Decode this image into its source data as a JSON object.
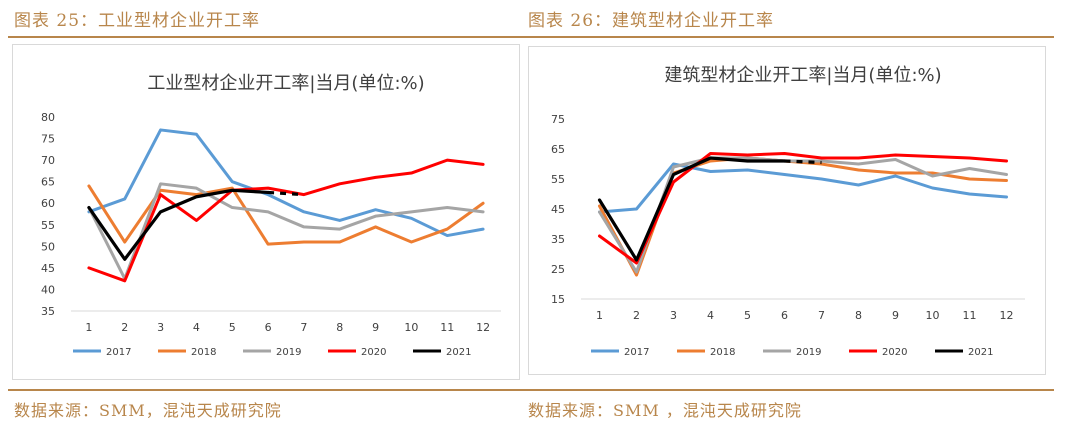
{
  "captions": {
    "left": "图表 25：工业型材企业开工率",
    "right": "图表 26：建筑型材企业开工率"
  },
  "sources": {
    "left": "数据来源：SMM，混沌天成研究院",
    "right": "数据来源：SMM ，混沌天成研究院"
  },
  "colors": {
    "2017": "#5b9bd5",
    "2018": "#ed7d31",
    "2019": "#a5a5a5",
    "2020": "#ff0000",
    "2021": "#000000",
    "accent": "#b8864b"
  },
  "chart_data": [
    {
      "type": "line",
      "title": "工业型材企业开工率|当月(单位:%)",
      "x": [
        1,
        2,
        3,
        4,
        5,
        6,
        7,
        8,
        9,
        10,
        11,
        12
      ],
      "ylim": [
        35,
        80
      ],
      "yticks": [
        35,
        40,
        45,
        50,
        55,
        60,
        65,
        70,
        75,
        80
      ],
      "grid": false,
      "legend": "bottom",
      "series": [
        {
          "name": "2017",
          "values": [
            58,
            61,
            77,
            76,
            65,
            62,
            58,
            56,
            58.5,
            56.5,
            52.5,
            54
          ]
        },
        {
          "name": "2018",
          "values": [
            64,
            51,
            63,
            62,
            63.5,
            50.5,
            51,
            51,
            54.5,
            51,
            54,
            60
          ]
        },
        {
          "name": "2019",
          "values": [
            59,
            42.5,
            64.5,
            63.5,
            59,
            58,
            54.5,
            54,
            57,
            58,
            59,
            58
          ]
        },
        {
          "name": "2020",
          "values": [
            45,
            42,
            62,
            56,
            63,
            63.5,
            62,
            64.5,
            66,
            67,
            70,
            69
          ]
        },
        {
          "name": "2021",
          "values": [
            59,
            47,
            58,
            61.5,
            63,
            62.5,
            62,
            null,
            null,
            null,
            null,
            null
          ]
        }
      ]
    },
    {
      "type": "line",
      "title": "建筑型材企业开工率|当月(单位:%)",
      "x": [
        1,
        2,
        3,
        4,
        5,
        6,
        7,
        8,
        9,
        10,
        11,
        12
      ],
      "ylim": [
        15,
        75
      ],
      "yticks": [
        15,
        25,
        35,
        45,
        55,
        65,
        75
      ],
      "grid": false,
      "legend": "bottom",
      "series": [
        {
          "name": "2017",
          "values": [
            44,
            45,
            60,
            57.5,
            58,
            56.5,
            55,
            53,
            56,
            52,
            50,
            49
          ]
        },
        {
          "name": "2018",
          "values": [
            46,
            23,
            57,
            61,
            62,
            61,
            60,
            58,
            57,
            57,
            55,
            54.5
          ]
        },
        {
          "name": "2019",
          "values": [
            44,
            24,
            59,
            62,
            62,
            61,
            61,
            60,
            61.5,
            56,
            58.5,
            56.5
          ]
        },
        {
          "name": "2020",
          "values": [
            36,
            27,
            54,
            63.5,
            63,
            63.5,
            62,
            62,
            63,
            62.5,
            62,
            61
          ]
        },
        {
          "name": "2021",
          "values": [
            48,
            28,
            56.5,
            62,
            61,
            61,
            60.5,
            null,
            null,
            null,
            null,
            null
          ]
        }
      ]
    }
  ]
}
